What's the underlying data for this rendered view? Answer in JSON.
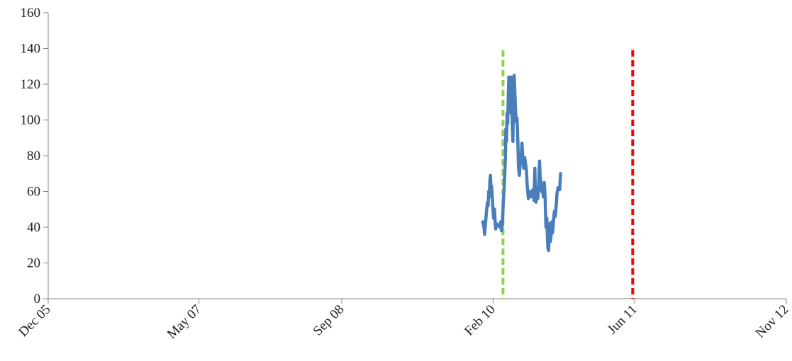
{
  "chart_data": {
    "type": "line",
    "title": "",
    "xlabel": "",
    "ylabel": "",
    "ylim": [
      0,
      160
    ],
    "yticks": [
      0,
      20,
      40,
      60,
      80,
      100,
      120,
      140,
      160
    ],
    "xlim": [
      "2005-12-01",
      "2012-11-01"
    ],
    "xticks": [
      {
        "date": "2005-12-01",
        "label": "Dec 05"
      },
      {
        "date": "2007-05-01",
        "label": "May 07"
      },
      {
        "date": "2008-09-01",
        "label": "Sep 08"
      },
      {
        "date": "2010-02-01",
        "label": "Feb 10"
      },
      {
        "date": "2011-06-01",
        "label": "Jun 11"
      },
      {
        "date": "2012-11-01",
        "label": "Nov 12"
      }
    ],
    "grid": false,
    "legend": "none",
    "series": [
      {
        "color": "#4a7ebb",
        "points": [
          [
            "2009-12-28",
            43
          ],
          [
            "2010-01-01",
            40
          ],
          [
            "2010-01-03",
            36
          ],
          [
            "2010-01-06",
            42
          ],
          [
            "2010-01-10",
            50
          ],
          [
            "2010-01-13",
            54
          ],
          [
            "2010-01-15",
            52
          ],
          [
            "2010-01-17",
            60
          ],
          [
            "2010-01-19",
            57
          ],
          [
            "2010-01-21",
            66
          ],
          [
            "2010-01-23",
            69
          ],
          [
            "2010-01-25",
            59
          ],
          [
            "2010-01-27",
            63
          ],
          [
            "2010-01-29",
            57
          ],
          [
            "2010-01-31",
            52
          ],
          [
            "2010-02-03",
            45
          ],
          [
            "2010-02-06",
            50
          ],
          [
            "2010-02-08",
            43
          ],
          [
            "2010-02-10",
            39
          ],
          [
            "2010-02-13",
            42
          ],
          [
            "2010-02-17",
            41
          ],
          [
            "2010-02-21",
            41
          ],
          [
            "2010-02-24",
            40
          ],
          [
            "2010-02-27",
            43
          ],
          [
            "2010-03-02",
            38
          ],
          [
            "2010-03-05",
            42
          ],
          [
            "2010-03-08",
            54
          ],
          [
            "2010-03-11",
            62
          ],
          [
            "2010-03-13",
            70
          ],
          [
            "2010-03-15",
            78
          ],
          [
            "2010-03-17",
            95
          ],
          [
            "2010-03-19",
            88
          ],
          [
            "2010-03-21",
            104
          ],
          [
            "2010-03-23",
            98
          ],
          [
            "2010-03-25",
            112
          ],
          [
            "2010-03-27",
            124
          ],
          [
            "2010-03-29",
            110
          ],
          [
            "2010-03-31",
            120
          ],
          [
            "2010-04-02",
            104
          ],
          [
            "2010-04-04",
            124
          ],
          [
            "2010-04-06",
            108
          ],
          [
            "2010-04-08",
            96
          ],
          [
            "2010-04-10",
            88
          ],
          [
            "2010-04-12",
            116
          ],
          [
            "2010-04-14",
            125
          ],
          [
            "2010-04-16",
            118
          ],
          [
            "2010-04-18",
            109
          ],
          [
            "2010-04-21",
            99
          ],
          [
            "2010-04-24",
            101
          ],
          [
            "2010-04-27",
            87
          ],
          [
            "2010-04-29",
            74
          ],
          [
            "2010-05-02",
            69
          ],
          [
            "2010-05-05",
            76
          ],
          [
            "2010-05-08",
            79
          ],
          [
            "2010-05-11",
            87
          ],
          [
            "2010-05-14",
            78
          ],
          [
            "2010-05-17",
            73
          ],
          [
            "2010-05-20",
            79
          ],
          [
            "2010-05-23",
            76
          ],
          [
            "2010-05-26",
            72
          ],
          [
            "2010-05-29",
            63
          ],
          [
            "2010-06-02",
            56
          ],
          [
            "2010-06-06",
            60
          ],
          [
            "2010-06-10",
            57
          ],
          [
            "2010-06-14",
            60
          ],
          [
            "2010-06-18",
            61
          ],
          [
            "2010-06-21",
            55
          ],
          [
            "2010-06-24",
            73
          ],
          [
            "2010-06-26",
            58
          ],
          [
            "2010-06-28",
            54
          ],
          [
            "2010-07-01",
            62
          ],
          [
            "2010-07-04",
            56
          ],
          [
            "2010-07-07",
            63
          ],
          [
            "2010-07-10",
            77
          ],
          [
            "2010-07-12",
            69
          ],
          [
            "2010-07-14",
            66
          ],
          [
            "2010-07-17",
            60
          ],
          [
            "2010-07-20",
            62
          ],
          [
            "2010-07-23",
            57
          ],
          [
            "2010-07-26",
            65
          ],
          [
            "2010-07-29",
            58
          ],
          [
            "2010-08-01",
            40
          ],
          [
            "2010-08-04",
            45
          ],
          [
            "2010-08-06",
            35
          ],
          [
            "2010-08-08",
            28
          ],
          [
            "2010-08-10",
            27
          ],
          [
            "2010-08-12",
            36
          ],
          [
            "2010-08-14",
            42
          ],
          [
            "2010-08-16",
            32
          ],
          [
            "2010-08-18",
            34
          ],
          [
            "2010-08-21",
            43
          ],
          [
            "2010-08-24",
            37
          ],
          [
            "2010-08-27",
            44
          ],
          [
            "2010-08-30",
            49
          ],
          [
            "2010-09-02",
            46
          ],
          [
            "2010-09-05",
            52
          ],
          [
            "2010-09-08",
            59
          ],
          [
            "2010-09-11",
            62
          ],
          [
            "2010-09-14",
            62
          ],
          [
            "2010-09-17",
            61
          ],
          [
            "2010-09-20",
            70
          ]
        ]
      }
    ],
    "vertical_markers": [
      {
        "date": "2010-03-07",
        "value_top": 139,
        "color": "#92d050",
        "style": "dashed"
      },
      {
        "date": "2011-05-25",
        "value_top": 139,
        "color": "#ff0000",
        "style": "dashed"
      }
    ]
  }
}
